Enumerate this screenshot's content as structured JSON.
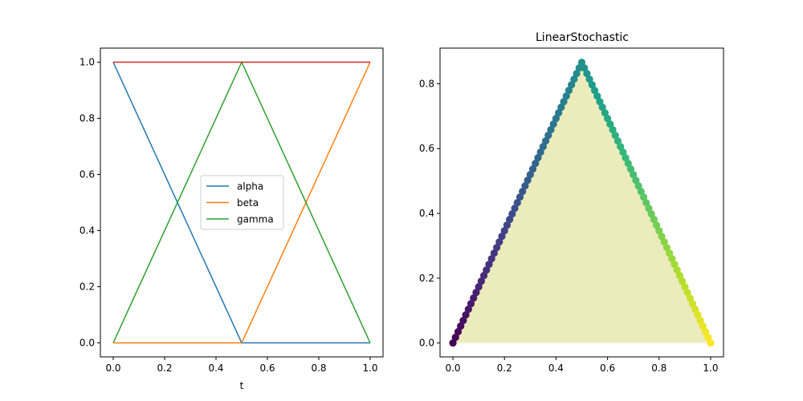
{
  "colors": {
    "alpha": "#1f77b4",
    "beta": "#ff7f0e",
    "gamma": "#2ca02c",
    "top_line": "#d62728",
    "fill": "#bcbd22",
    "scatter_colormap": "viridis"
  },
  "chart_data": [
    {
      "type": "line",
      "title": "",
      "xlabel": "t",
      "ylabel": "",
      "xlim": [
        -0.05,
        1.05
      ],
      "ylim": [
        -0.05,
        1.05
      ],
      "xticks": [
        "0.0",
        "0.2",
        "0.4",
        "0.6",
        "0.8",
        "1.0"
      ],
      "yticks": [
        "0.0",
        "0.2",
        "0.4",
        "0.6",
        "0.8",
        "1.0"
      ],
      "grid": false,
      "legend_position": "center",
      "x": [
        0.0,
        0.5,
        1.0
      ],
      "series": [
        {
          "name": "alpha",
          "values": [
            1.0,
            0.0,
            0.0
          ],
          "color": "#1f77b4"
        },
        {
          "name": "beta",
          "values": [
            0.0,
            0.0,
            1.0
          ],
          "color": "#ff7f0e"
        },
        {
          "name": "gamma",
          "values": [
            0.0,
            1.0,
            0.0
          ],
          "color": "#2ca02c"
        },
        {
          "values": [
            1.0,
            1.0,
            1.0
          ],
          "color": "#d62728"
        }
      ]
    },
    {
      "type": "scatter",
      "title": "LinearStochastic",
      "xlabel": "",
      "ylabel": "",
      "xlim": [
        -0.05,
        1.05
      ],
      "ylim": [
        -0.043,
        0.91
      ],
      "xticks": [
        "0.0",
        "0.2",
        "0.4",
        "0.6",
        "0.8",
        "1.0"
      ],
      "yticks": [
        "0.0",
        "0.2",
        "0.4",
        "0.6",
        "0.8"
      ],
      "grid": false,
      "colormap": "viridis",
      "fill_region": {
        "x": [
          0.0,
          0.5,
          1.0
        ],
        "y": [
          0.0,
          0.866,
          0.0
        ],
        "color": "#bcbd22",
        "alpha": 0.3
      },
      "path": {
        "x": [
          0.0,
          0.5,
          1.0
        ],
        "y": [
          0.0,
          0.866,
          0.0
        ],
        "points": 101,
        "color_from": 0.0,
        "color_to": 1.0
      }
    }
  ]
}
